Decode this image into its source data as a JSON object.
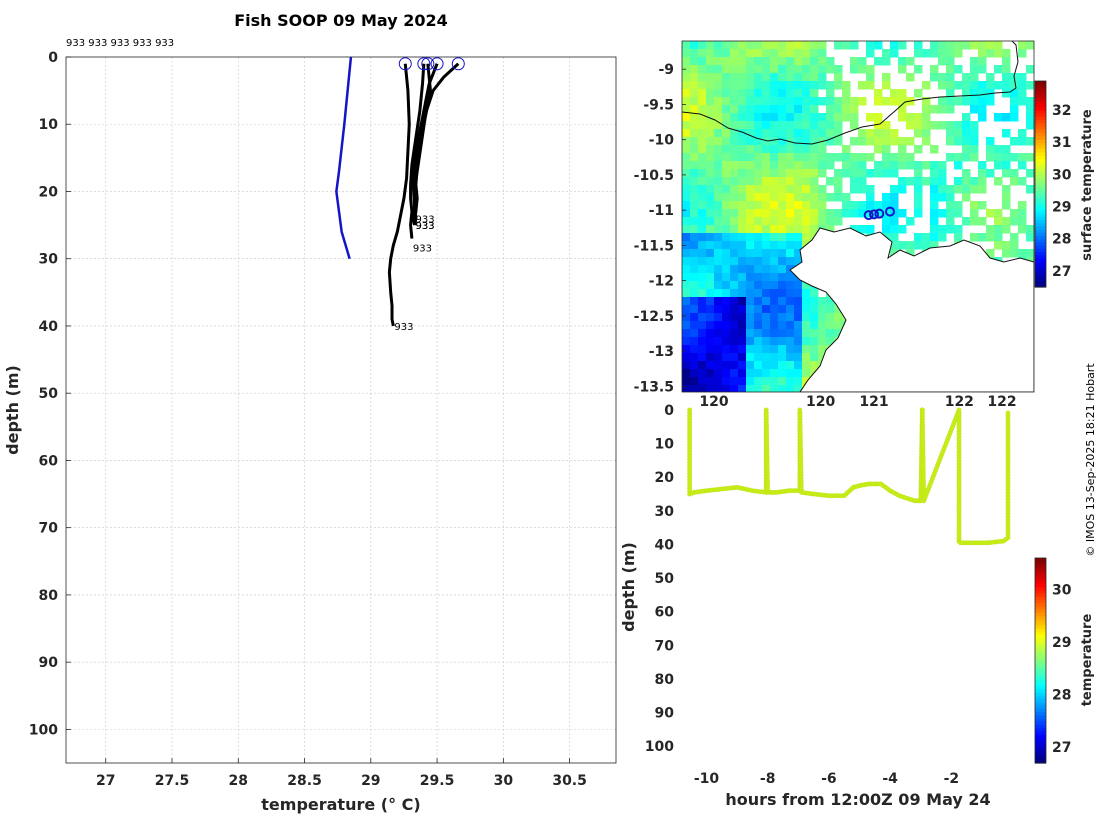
{
  "title": "Fish SOOP 09 May 2024",
  "header_ids": "933 933 933 933 933",
  "credit": "© IMOS 13-Sep-2025 18:21 Hobart",
  "chart_data": [
    {
      "type": "line",
      "name": "profiles",
      "xlabel": "temperature (° C)",
      "ylabel": "depth (m)",
      "xlim": [
        26.7,
        30.85
      ],
      "ylim": [
        0,
        105
      ],
      "xticks": [
        "27",
        "27.5",
        "28",
        "28.5",
        "29",
        "29.5",
        "30",
        "30.5"
      ],
      "yticks": [
        "0",
        "10",
        "20",
        "30",
        "40",
        "50",
        "60",
        "70",
        "80",
        "90",
        "100"
      ],
      "climatology": {
        "color": "#1414c8",
        "temp": [
          28.85,
          28.8,
          28.76,
          28.74,
          28.78,
          28.84
        ],
        "depth": [
          0,
          10,
          17,
          20,
          26,
          30
        ]
      },
      "series": [
        {
          "name": "933",
          "end_label": "933",
          "temp": [
            29.26,
            29.28,
            29.29,
            29.28,
            29.27,
            29.25,
            29.22,
            29.2,
            29.17,
            29.15,
            29.14,
            29.15,
            29.16,
            29.16,
            29.17
          ],
          "depth": [
            1,
            5,
            10,
            14,
            18,
            21,
            24,
            26,
            28,
            30,
            32,
            35,
            37,
            39,
            40
          ]
        },
        {
          "name": "933",
          "end_label": "933",
          "temp": [
            29.4,
            29.39,
            29.37,
            29.34,
            29.31,
            29.3,
            29.3,
            29.31,
            29.3,
            29.31
          ],
          "depth": [
            1,
            4,
            8,
            12,
            16,
            19,
            21,
            23,
            25,
            27
          ]
        },
        {
          "name": "933",
          "end_label": "933",
          "temp": [
            29.5,
            29.44,
            29.4,
            29.36,
            29.33,
            29.32,
            29.33,
            29.32,
            29.33
          ],
          "depth": [
            1,
            4,
            8,
            12,
            16,
            19,
            22,
            24,
            25
          ]
        },
        {
          "name": "933",
          "end_label": "933",
          "temp": [
            29.43,
            29.45,
            29.41,
            29.38,
            29.35,
            29.33,
            29.33,
            29.34,
            29.33
          ],
          "depth": [
            1,
            5,
            9,
            13,
            17,
            20,
            22,
            24,
            25
          ]
        },
        {
          "name": "933",
          "end_label": "933",
          "temp": [
            29.66,
            29.55,
            29.47,
            29.42,
            29.38,
            29.35,
            29.34,
            29.35,
            29.34,
            29.33
          ],
          "depth": [
            1,
            3,
            5,
            8,
            12,
            16,
            19,
            21,
            23,
            24
          ]
        }
      ]
    },
    {
      "type": "heatmap",
      "name": "map",
      "xlim": [
        119.2,
        122.5
      ],
      "ylim": [
        -13.58,
        -8.6
      ],
      "xticks": [
        "120",
        "120",
        "121",
        "122",
        "122"
      ],
      "xtick_values": [
        119.5,
        120.5,
        121.0,
        121.8,
        122.2
      ],
      "yticks": [
        "-9",
        "-9.5",
        "-10",
        "-10.5",
        "-11",
        "-11.5",
        "-12",
        "-12.5",
        "-13",
        "-13.5"
      ],
      "ytick_values": [
        -9,
        -9.5,
        -10,
        -10.5,
        -11,
        -11.5,
        -12,
        -12.5,
        -13,
        -13.5
      ],
      "stations": {
        "lon": [
          120.95,
          121.0,
          121.05,
          121.15
        ],
        "lat": [
          -11.07,
          -11.06,
          -11.05,
          -11.02
        ]
      },
      "colorbar": {
        "label": "surface temperature",
        "range": [
          26.5,
          32.9
        ],
        "ticks": [
          "27",
          "28",
          "29",
          "30",
          "31",
          "32"
        ],
        "tick_values": [
          27,
          28,
          29,
          30,
          31,
          32
        ]
      }
    },
    {
      "type": "scatter",
      "name": "depth-time",
      "xlabel": "hours from 12:00Z 09 May 24",
      "ylabel": "depth (m)",
      "xlim": [
        -10.8,
        0.7
      ],
      "ylim": [
        0,
        105
      ],
      "xticks": [
        "-10",
        "-8",
        "-6",
        "-4",
        "-2"
      ],
      "xtick_values": [
        -10,
        -8,
        -6,
        -4,
        -2
      ],
      "yticks": [
        "0",
        "10",
        "20",
        "30",
        "40",
        "50",
        "60",
        "70",
        "80",
        "90",
        "100"
      ],
      "track": {
        "hours": [
          -10.55,
          -10.55,
          -10.4,
          -10.0,
          -9.5,
          -9.0,
          -8.5,
          -8.05,
          -8.05,
          -8.0,
          -7.7,
          -7.3,
          -6.95,
          -6.95,
          -6.9,
          -6.5,
          -6.0,
          -5.5,
          -5.2,
          -5.0,
          -4.7,
          -4.3,
          -4.0,
          -3.7,
          -3.2,
          -3.0,
          -2.95,
          -2.95,
          -2.9,
          -1.75,
          -1.75,
          -1.7,
          -1.3,
          -0.8,
          -0.3,
          -0.15,
          -0.15
        ],
        "depth": [
          0,
          25,
          24.5,
          24,
          23.5,
          23,
          24,
          24.5,
          0,
          24.5,
          24.5,
          24,
          24,
          0,
          24.5,
          25,
          25.5,
          25.5,
          23,
          22.5,
          22,
          22,
          24,
          25.5,
          27,
          27,
          0,
          0,
          27,
          0,
          39,
          39.5,
          39.5,
          39.5,
          39,
          38,
          0
        ]
      },
      "colorbar": {
        "label": "temperature",
        "range": [
          26.7,
          30.6
        ],
        "ticks": [
          "27",
          "28",
          "29",
          "30"
        ],
        "tick_values": [
          27,
          28,
          29,
          30
        ]
      }
    }
  ]
}
